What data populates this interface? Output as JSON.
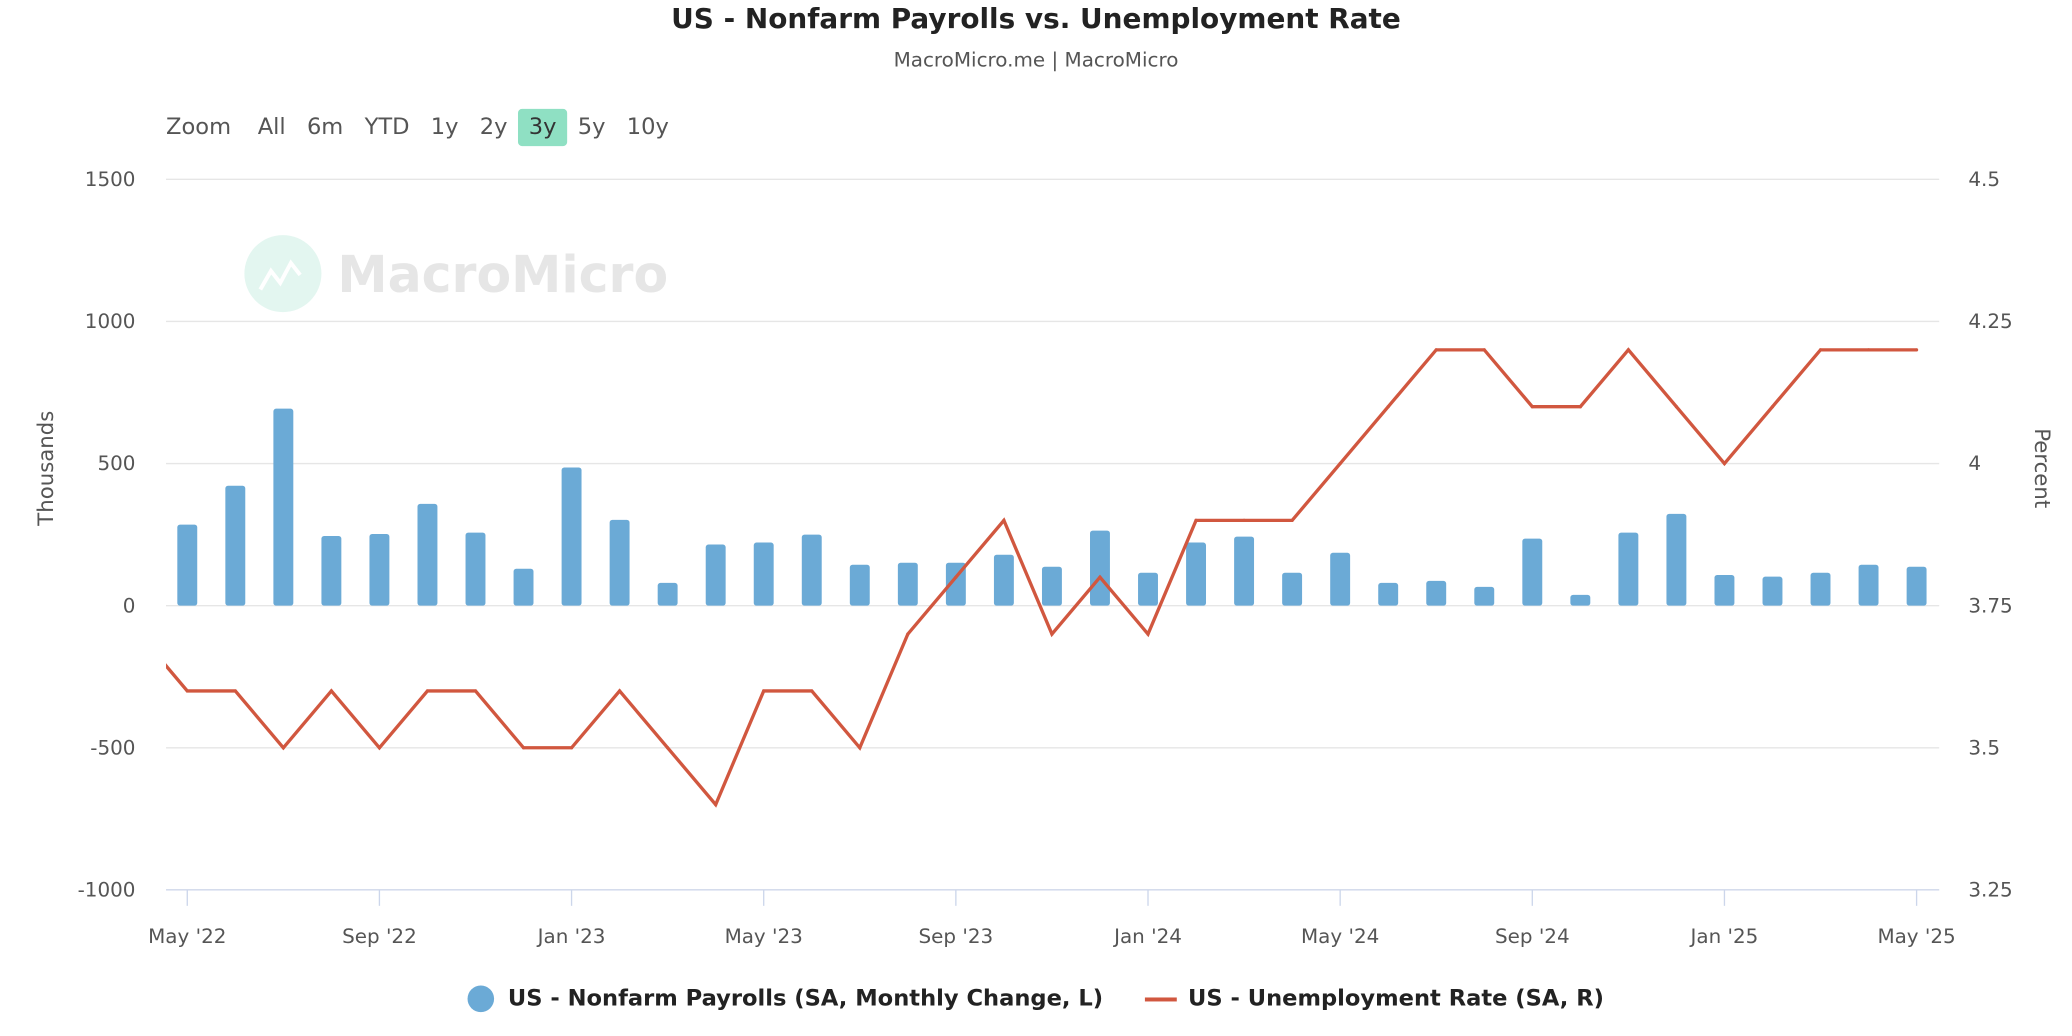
{
  "title": "US - Nonfarm Payrolls vs. Unemployment Rate",
  "subtitle": "MacroMicro.me | MacroMicro",
  "watermark": "MacroMicro",
  "zoom": {
    "label": "Zoom",
    "options": [
      "All",
      "6m",
      "YTD",
      "1y",
      "2y",
      "3y",
      "5y",
      "10y"
    ],
    "selected": "3y",
    "selected_color": "#8fe0c3"
  },
  "legend": {
    "payrolls": "US - Nonfarm Payrolls (SA, Monthly Change, L)",
    "unemployment": "US - Unemployment Rate (SA, R)"
  },
  "chart_data": {
    "type": "bar+line",
    "title": "US - Nonfarm Payrolls vs. Unemployment Rate",
    "x_ticks": [
      "May '22",
      "Sep '22",
      "Jan '23",
      "May '23",
      "Sep '23",
      "Jan '24",
      "May '24",
      "Sep '24",
      "Jan '25",
      "May '25"
    ],
    "categories": [
      "2022-05",
      "2022-06",
      "2022-07",
      "2022-08",
      "2022-09",
      "2022-10",
      "2022-11",
      "2022-12",
      "2023-01",
      "2023-02",
      "2023-03",
      "2023-04",
      "2023-05",
      "2023-06",
      "2023-07",
      "2023-08",
      "2023-09",
      "2023-10",
      "2023-11",
      "2023-12",
      "2024-01",
      "2024-02",
      "2024-03",
      "2024-04",
      "2024-05",
      "2024-06",
      "2024-07",
      "2024-08",
      "2024-09",
      "2024-10",
      "2024-11",
      "2024-12",
      "2025-01",
      "2025-02",
      "2025-03",
      "2025-04",
      "2025-05"
    ],
    "y_left": {
      "label": "Thousands",
      "range": [
        -1000,
        1500
      ],
      "ticks": [
        "1500",
        "1000",
        "500",
        "0",
        "-500",
        "-1000"
      ]
    },
    "y_right": {
      "label": "Percent",
      "range": [
        3.25,
        4.5
      ],
      "ticks": [
        "4.5",
        "4.25",
        "4",
        "3.75",
        "3.5",
        "3.25"
      ]
    },
    "grid": true,
    "legend_position": "bottom",
    "series": [
      {
        "name": "US - Nonfarm Payrolls (SA, Monthly Change, L)",
        "type": "bar",
        "axis": "left",
        "color": "#6baad6",
        "values": [
          285,
          422,
          693,
          245,
          252,
          358,
          257,
          130,
          486,
          302,
          80,
          215,
          222,
          250,
          144,
          151,
          151,
          179,
          137,
          264,
          116,
          222,
          243,
          116,
          186,
          80,
          87,
          66,
          236,
          38,
          257,
          323,
          108,
          102,
          116,
          144,
          137
        ]
      },
      {
        "name": "US - Unemployment Rate (SA, R)",
        "type": "line",
        "axis": "right",
        "color": "#d1573f",
        "prior_value": 3.7,
        "values": [
          3.6,
          3.6,
          3.5,
          3.6,
          3.5,
          3.6,
          3.6,
          3.5,
          3.5,
          3.6,
          3.5,
          3.4,
          3.6,
          3.6,
          3.5,
          3.7,
          3.8,
          3.9,
          3.7,
          3.8,
          3.7,
          3.9,
          3.9,
          3.9,
          4.0,
          4.1,
          4.2,
          4.2,
          4.1,
          4.1,
          4.2,
          4.1,
          4.0,
          4.1,
          4.2,
          4.2,
          4.2
        ]
      }
    ]
  }
}
